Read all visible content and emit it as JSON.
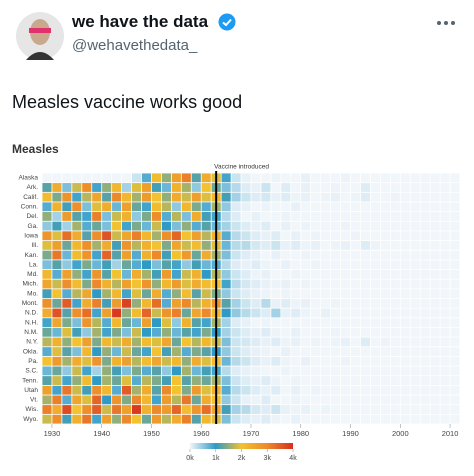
{
  "tweet": {
    "name": "we have the data",
    "handle": "@wehavethedata_",
    "text": "Measles vaccine works good"
  },
  "chart_data": {
    "type": "heatmap",
    "title": "Measles",
    "annotation": {
      "x": 1963,
      "label": "Vaccine introduced"
    },
    "x": [
      1928,
      1930,
      1932,
      1934,
      1936,
      1938,
      1940,
      1942,
      1944,
      1946,
      1948,
      1950,
      1952,
      1954,
      1956,
      1958,
      1960,
      1962,
      1964,
      1966,
      1968,
      1970,
      1972,
      1974,
      1976,
      1978,
      1980,
      1982,
      1984,
      1986,
      1988,
      1990,
      1992,
      1994,
      1996,
      1998,
      2000,
      2002,
      2004,
      2006,
      2008,
      2010
    ],
    "xlim": [
      1928,
      2012
    ],
    "xticks": [
      1930,
      1940,
      1950,
      1960,
      1970,
      1980,
      1990,
      2000,
      2010
    ],
    "categories": [
      "Alaska",
      "Ark.",
      "Calif.",
      "Conn.",
      "Del.",
      "Ga.",
      "Iowa",
      "Ill.",
      "Kan.",
      "La.",
      "Md.",
      "Mich.",
      "Mo.",
      "Mont.",
      "N.D.",
      "N.H.",
      "N.M.",
      "N.Y.",
      "Okla.",
      "Pa.",
      "S.C.",
      "Tenn.",
      "Utah",
      "Vt.",
      "Wis.",
      "Wyo."
    ],
    "values": [
      [
        0,
        0,
        0,
        0,
        0,
        0,
        0,
        0,
        0,
        0.2,
        0.8,
        2.1,
        1.5,
        2.6,
        3.1,
        1.2,
        2.4,
        1.9,
        0.9,
        0.2,
        0.05,
        0,
        0,
        0.02,
        0,
        0,
        0.05,
        0,
        0,
        0,
        0.02,
        0,
        0,
        0,
        0,
        0,
        0,
        0,
        0,
        0,
        0,
        0
      ],
      [
        1.2,
        2.4,
        0.6,
        1.8,
        2.9,
        0.9,
        1.5,
        2.2,
        0.4,
        1.9,
        2.6,
        1.1,
        0.7,
        2.3,
        1.6,
        0.5,
        2.0,
        1.3,
        0.6,
        0.3,
        0.1,
        0.05,
        0.2,
        0,
        0.1,
        0,
        0.05,
        0,
        0,
        0.02,
        0,
        0,
        0.1,
        0,
        0,
        0,
        0,
        0,
        0,
        0,
        0,
        0
      ],
      [
        2.1,
        1.4,
        2.8,
        0.9,
        1.7,
        2.5,
        1.2,
        3.0,
        2.2,
        1.6,
        2.7,
        2.0,
        1.5,
        2.4,
        1.8,
        2.6,
        1.9,
        2.2,
        1.1,
        0.4,
        0.2,
        0.1,
        0.15,
        0.05,
        0.1,
        0.02,
        0.05,
        0,
        0.02,
        0.05,
        0,
        0.02,
        0.1,
        0,
        0,
        0.02,
        0,
        0,
        0,
        0,
        0,
        0
      ],
      [
        0.8,
        2.3,
        1.1,
        2.9,
        0.6,
        1.9,
        2.4,
        0.7,
        2.6,
        1.3,
        0.9,
        2.1,
        1.7,
        0.5,
        2.2,
        1.4,
        0.8,
        1.6,
        0.5,
        0.1,
        0.05,
        0,
        0.02,
        0,
        0,
        0.05,
        0,
        0,
        0,
        0,
        0,
        0,
        0,
        0,
        0,
        0,
        0,
        0,
        0,
        0,
        0,
        0
      ],
      [
        1.5,
        0.4,
        2.7,
        1.2,
        0.9,
        3.1,
        0.6,
        1.8,
        2.3,
        0.5,
        1.4,
        2.9,
        0.8,
        1.7,
        0.6,
        2.4,
        1.1,
        0.9,
        0.3,
        0.1,
        0,
        0.05,
        0,
        0,
        0.02,
        0,
        0,
        0,
        0,
        0,
        0,
        0,
        0,
        0,
        0,
        0,
        0,
        0,
        0,
        0,
        0,
        0
      ],
      [
        0.5,
        1.1,
        0.4,
        1.6,
        0.8,
        1.3,
        0.6,
        2.0,
        0.9,
        1.4,
        0.7,
        1.8,
        1.0,
        0.6,
        1.5,
        0.8,
        1.2,
        0.7,
        0.4,
        0.2,
        0.1,
        0.05,
        0.1,
        0,
        0.05,
        0,
        0.02,
        0,
        0,
        0,
        0.02,
        0,
        0,
        0,
        0,
        0,
        0,
        0,
        0,
        0,
        0,
        0
      ],
      [
        2.8,
        1.9,
        3.3,
        2.4,
        1.2,
        2.9,
        3.6,
        1.8,
        2.5,
        3.1,
        2.2,
        1.6,
        2.9,
        3.4,
        2.0,
        2.6,
        1.7,
        2.3,
        0.8,
        0.3,
        0.2,
        0.1,
        0.05,
        0.1,
        0,
        0.05,
        0,
        0.02,
        0,
        0,
        0,
        0.02,
        0,
        0,
        0,
        0,
        0,
        0,
        0,
        0,
        0,
        0
      ],
      [
        1.9,
        2.6,
        1.3,
        2.2,
        2.9,
        1.6,
        2.4,
        1.1,
        2.8,
        1.7,
        2.3,
        2.0,
        1.4,
        2.5,
        1.8,
        2.1,
        1.5,
        1.9,
        0.7,
        0.3,
        0.3,
        0.15,
        0.1,
        0.2,
        0.05,
        0.1,
        0.02,
        0.05,
        0,
        0.02,
        0.05,
        0,
        0.1,
        0.02,
        0,
        0,
        0,
        0,
        0,
        0,
        0,
        0
      ],
      [
        1.4,
        3.2,
        0.7,
        2.1,
        2.8,
        0.9,
        3.4,
        1.2,
        2.6,
        0.8,
        2.3,
        3.0,
        1.1,
        2.0,
        2.7,
        1.3,
        2.4,
        1.6,
        0.6,
        0.2,
        0.1,
        0.05,
        0,
        0.05,
        0,
        0,
        0.02,
        0,
        0,
        0,
        0,
        0,
        0,
        0,
        0,
        0,
        0,
        0,
        0,
        0,
        0,
        0
      ],
      [
        0.6,
        1.2,
        0.5,
        0.9,
        1.4,
        0.7,
        1.1,
        0.4,
        1.3,
        0.8,
        1.0,
        0.6,
        1.2,
        0.9,
        0.5,
        1.1,
        0.7,
        0.8,
        0.3,
        0.1,
        0.05,
        0.1,
        0.02,
        0,
        0.05,
        0,
        0,
        0.02,
        0,
        0,
        0,
        0,
        0,
        0,
        0,
        0,
        0,
        0,
        0,
        0,
        0,
        0
      ],
      [
        2.2,
        0.8,
        2.6,
        1.5,
        0.9,
        2.8,
        1.2,
        2.0,
        0.7,
        2.4,
        1.6,
        1.1,
        2.7,
        0.9,
        1.8,
        2.3,
        1.0,
        1.7,
        0.5,
        0.2,
        0.1,
        0.02,
        0.05,
        0,
        0,
        0.02,
        0,
        0,
        0,
        0,
        0,
        0,
        0,
        0,
        0,
        0,
        0,
        0,
        0,
        0,
        0,
        0
      ],
      [
        2.5,
        1.8,
        2.9,
        2.1,
        1.4,
        3.0,
        2.3,
        1.7,
        2.6,
        2.0,
        2.8,
        1.5,
        2.2,
        2.7,
        1.9,
        2.4,
        2.1,
        2.0,
        0.9,
        0.3,
        0.15,
        0.1,
        0.05,
        0.02,
        0.05,
        0,
        0.02,
        0,
        0,
        0,
        0,
        0,
        0,
        0,
        0,
        0,
        0,
        0,
        0,
        0,
        0,
        0
      ],
      [
        1.1,
        2.0,
        0.8,
        1.7,
        2.5,
        1.0,
        1.6,
        2.2,
        0.9,
        1.9,
        1.3,
        2.4,
        0.8,
        1.5,
        2.1,
        1.2,
        1.8,
        1.4,
        0.5,
        0.2,
        0.1,
        0.05,
        0.02,
        0,
        0.02,
        0,
        0,
        0,
        0,
        0,
        0,
        0,
        0,
        0,
        0,
        0,
        0,
        0,
        0,
        0,
        0,
        0
      ],
      [
        2.9,
        1.3,
        3.5,
        0.9,
        2.4,
        3.1,
        1.1,
        2.7,
        3.8,
        1.5,
        2.2,
        3.3,
        0.8,
        2.6,
        3.0,
        1.7,
        2.3,
        2.8,
        1.2,
        0.4,
        0.2,
        0.1,
        0.3,
        0.05,
        0.1,
        0.02,
        0.05,
        0,
        0,
        0.02,
        0,
        0,
        0,
        0,
        0,
        0,
        0,
        0,
        0,
        0,
        0,
        0
      ],
      [
        2.4,
        3.6,
        1.2,
        2.9,
        3.3,
        0.9,
        2.6,
        3.9,
        1.5,
        2.1,
        3.4,
        1.8,
        2.8,
        3.1,
        1.3,
        2.5,
        3.0,
        2.2,
        1.0,
        0.5,
        0.3,
        0.2,
        0.1,
        0.4,
        0.05,
        0.1,
        0.02,
        0,
        0.05,
        0,
        0,
        0,
        0,
        0,
        0,
        0,
        0,
        0,
        0,
        0,
        0,
        0
      ],
      [
        0.9,
        2.5,
        1.4,
        0.6,
        2.8,
        1.7,
        0.8,
        2.2,
        1.3,
        0.7,
        2.6,
        1.0,
        1.9,
        0.5,
        2.3,
        1.2,
        0.9,
        1.6,
        0.4,
        0.1,
        0.05,
        0,
        0.02,
        0,
        0,
        0,
        0,
        0,
        0,
        0,
        0,
        0,
        0,
        0,
        0,
        0,
        0,
        0,
        0,
        0,
        0,
        0
      ],
      [
        1.3,
        0.7,
        1.9,
        1.1,
        0.5,
        1.6,
        0.9,
        1.4,
        0.6,
        1.8,
        1.0,
        0.8,
        1.5,
        0.7,
        1.2,
        0.9,
        1.4,
        1.0,
        0.4,
        0.2,
        0.1,
        0.05,
        0.1,
        0.02,
        0,
        0.05,
        0,
        0,
        0,
        0.02,
        0,
        0,
        0,
        0,
        0,
        0,
        0,
        0,
        0,
        0,
        0,
        0
      ],
      [
        1.7,
        2.3,
        1.5,
        2.0,
        2.6,
        1.4,
        2.2,
        1.8,
        2.4,
        1.6,
        2.1,
        1.9,
        2.5,
        1.3,
        2.0,
        1.7,
        2.2,
        1.8,
        0.6,
        0.2,
        0.15,
        0.1,
        0.05,
        0.1,
        0.02,
        0.05,
        0,
        0.02,
        0,
        0.02,
        0.05,
        0,
        0.1,
        0,
        0.02,
        0,
        0,
        0,
        0,
        0,
        0,
        0
      ],
      [
        0.8,
        1.9,
        1.2,
        0.6,
        2.2,
        1.0,
        1.5,
        0.7,
        1.8,
        1.3,
        0.9,
        2.0,
        1.1,
        1.6,
        0.8,
        1.4,
        1.2,
        1.0,
        0.5,
        0.2,
        0.1,
        0.05,
        0.02,
        0,
        0.05,
        0,
        0,
        0,
        0,
        0,
        0,
        0,
        0,
        0,
        0,
        0,
        0,
        0,
        0,
        0,
        0,
        0
      ],
      [
        2.0,
        2.7,
        1.6,
        2.4,
        1.9,
        2.8,
        1.4,
        2.3,
        2.6,
        1.7,
        2.1,
        2.5,
        1.8,
        2.2,
        1.5,
        2.4,
        1.9,
        2.1,
        0.7,
        0.3,
        0.2,
        0.1,
        0.05,
        0.1,
        0.02,
        0,
        0.05,
        0,
        0,
        0,
        0.02,
        0,
        0,
        0,
        0,
        0,
        0,
        0,
        0,
        0,
        0,
        0
      ],
      [
        0.7,
        1.3,
        0.5,
        1.8,
        0.9,
        0.4,
        1.5,
        1.1,
        0.6,
        1.4,
        0.8,
        1.2,
        0.5,
        1.0,
        1.6,
        0.7,
        1.1,
        0.9,
        0.3,
        0.1,
        0.05,
        0.02,
        0,
        0,
        0.02,
        0,
        0,
        0,
        0,
        0,
        0,
        0,
        0,
        0,
        0,
        0,
        0,
        0,
        0,
        0,
        0,
        0
      ],
      [
        1.2,
        1.8,
        0.9,
        1.5,
        2.1,
        1.0,
        1.6,
        1.3,
        1.9,
        0.8,
        1.7,
        1.4,
        1.1,
        2.0,
        1.2,
        1.5,
        1.3,
        1.6,
        0.6,
        0.2,
        0.1,
        0.05,
        0.1,
        0.02,
        0,
        0.02,
        0,
        0,
        0,
        0,
        0,
        0,
        0,
        0,
        0,
        0,
        0,
        0,
        0,
        0,
        0,
        0
      ],
      [
        2.6,
        0.9,
        3.2,
        1.8,
        1.1,
        2.9,
        2.2,
        0.8,
        3.5,
        1.6,
        2.4,
        1.2,
        3.0,
        2.0,
        1.4,
        2.7,
        1.9,
        2.3,
        0.8,
        0.3,
        0.2,
        0.1,
        0.05,
        0.1,
        0,
        0.05,
        0,
        0.02,
        0,
        0,
        0,
        0,
        0,
        0,
        0,
        0,
        0,
        0,
        0,
        0,
        0,
        0
      ],
      [
        1.6,
        3.1,
        0.8,
        2.5,
        1.9,
        3.4,
        1.0,
        2.8,
        1.4,
        3.0,
        2.2,
        0.9,
        2.7,
        1.7,
        3.2,
        1.3,
        2.4,
        2.0,
        0.5,
        0.2,
        0.05,
        0.02,
        0.1,
        0,
        0,
        0.02,
        0,
        0,
        0,
        0,
        0,
        0,
        0,
        0,
        0,
        0,
        0,
        0,
        0,
        0,
        0,
        0
      ],
      [
        3.1,
        2.4,
        3.7,
        2.0,
        2.9,
        3.5,
        1.8,
        3.2,
        2.6,
        3.9,
        2.3,
        3.0,
        2.7,
        3.4,
        2.1,
        2.8,
        3.3,
        2.5,
        1.1,
        0.4,
        0.3,
        0.15,
        0.1,
        0.2,
        0.05,
        0.02,
        0.05,
        0,
        0.02,
        0,
        0,
        0,
        0,
        0,
        0,
        0,
        0,
        0,
        0,
        0,
        0,
        0
      ],
      [
        1.8,
        2.9,
        1.1,
        2.3,
        3.2,
        0.9,
        2.6,
        1.5,
        3.0,
        2.0,
        1.3,
        2.7,
        1.7,
        2.4,
        3.1,
        1.2,
        2.2,
        1.9,
        0.6,
        0.2,
        0.1,
        0.05,
        0.1,
        0.02,
        0,
        0.05,
        0,
        0,
        0,
        0,
        0,
        0,
        0,
        0,
        0,
        0,
        0,
        0,
        0,
        0,
        0,
        0
      ]
    ],
    "legend": {
      "ticks": [
        {
          "value": 0,
          "label": "0k"
        },
        {
          "value": 1,
          "label": "1k"
        },
        {
          "value": 2,
          "label": "2k"
        },
        {
          "value": 3,
          "label": "3k"
        },
        {
          "value": 4,
          "label": "4k"
        }
      ],
      "colors": [
        "#f1f6fa",
        "#2f9ac6",
        "#f2c230",
        "#ec8a2b",
        "#d7301f"
      ]
    }
  }
}
